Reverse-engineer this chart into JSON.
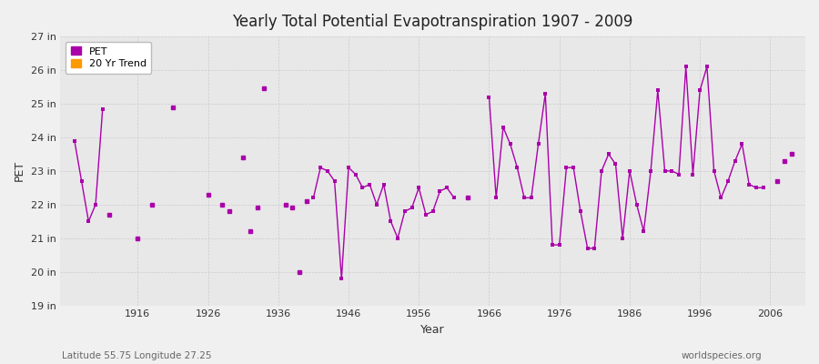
{
  "title": "Yearly Total Potential Evapotranspiration 1907 - 2009",
  "xlabel": "Year",
  "ylabel": "PET",
  "subtitle_left": "Latitude 55.75 Longitude 27.25",
  "watermark": "worldspecies.org",
  "line_color": "#AA00AA",
  "trend_color": "#FF9900",
  "bg_color": "#E8E8E8",
  "fig_bg_color": "#F0F0F0",
  "grid_color": "#CCCCCC",
  "ylim": [
    19,
    27
  ],
  "ytick_values": [
    19,
    20,
    21,
    22,
    23,
    24,
    25,
    26,
    27
  ],
  "ytick_labels": [
    "19 in",
    "20 in",
    "21 in",
    "22 in",
    "23 in",
    "24 in",
    "25 in",
    "26 in",
    "27 in"
  ],
  "xlim": [
    1905,
    2011
  ],
  "xticks": [
    1916,
    1926,
    1936,
    1946,
    1956,
    1966,
    1976,
    1986,
    1996,
    2006
  ],
  "year_values": {
    "1907": 23.9,
    "1908": 22.7,
    "1909": 21.5,
    "1910": 22.0,
    "1911": 24.85,
    "1912": 21.7,
    "1916": 21.0,
    "1918": 22.0,
    "1921": 24.9,
    "1926": 22.3,
    "1928": 22.0,
    "1929": 21.8,
    "1931": 23.4,
    "1932": 21.2,
    "1933": 21.9,
    "1934": 25.45,
    "1937": 22.0,
    "1938": 21.9,
    "1939": 20.0,
    "1940": 22.1,
    "1941": 22.2,
    "1942": 23.1,
    "1943": 23.0,
    "1944": 22.7,
    "1945": 19.8,
    "1946": 23.1,
    "1947": 22.9,
    "1948": 22.5,
    "1949": 22.6,
    "1950": 22.0,
    "1951": 22.6,
    "1952": 21.5,
    "1953": 21.0,
    "1954": 21.8,
    "1955": 21.9,
    "1956": 22.5,
    "1957": 21.7,
    "1958": 21.8,
    "1959": 22.4,
    "1960": 22.5,
    "1961": 22.2,
    "1963": 22.2,
    "1966": 25.2,
    "1967": 22.2,
    "1968": 24.3,
    "1969": 23.8,
    "1970": 23.1,
    "1971": 22.2,
    "1972": 22.2,
    "1973": 23.8,
    "1974": 25.3,
    "1975": 20.8,
    "1976": 20.8,
    "1977": 23.1,
    "1978": 23.1,
    "1979": 21.8,
    "1980": 20.7,
    "1981": 20.7,
    "1982": 23.0,
    "1983": 23.5,
    "1984": 23.2,
    "1985": 21.0,
    "1986": 23.0,
    "1987": 22.0,
    "1988": 21.2,
    "1989": 23.0,
    "1990": 25.4,
    "1991": 23.0,
    "1992": 23.0,
    "1993": 22.9,
    "1994": 26.1,
    "1995": 22.9,
    "1996": 25.4,
    "1997": 26.1,
    "1998": 23.0,
    "1999": 22.2,
    "2000": 22.7,
    "2001": 23.3,
    "2002": 23.8,
    "2003": 22.6,
    "2004": 22.5,
    "2005": 22.5,
    "2007": 22.7,
    "2008": 23.3,
    "2009": 23.5
  },
  "segments": [
    [
      1907,
      1908,
      1909,
      1910,
      1911
    ],
    [
      1941,
      1942,
      1943,
      1944,
      1945,
      1946,
      1947,
      1948,
      1949,
      1950,
      1951,
      1952,
      1953,
      1954,
      1955,
      1956,
      1957,
      1958,
      1959,
      1960,
      1961
    ],
    [
      1966,
      1967,
      1968,
      1969,
      1970,
      1971,
      1972,
      1973,
      1974,
      1975,
      1976,
      1977,
      1978,
      1979,
      1980,
      1981,
      1982,
      1983,
      1984,
      1985,
      1986,
      1987,
      1988,
      1989,
      1990,
      1991,
      1992,
      1993,
      1994,
      1995,
      1996,
      1997,
      1998,
      1999,
      2000,
      2001,
      2002,
      2003,
      2004,
      2005
    ]
  ],
  "isolated_years": [
    1912,
    1916,
    1918,
    1921,
    1926,
    1928,
    1929,
    1931,
    1932,
    1933,
    1934,
    1937,
    1938,
    1939,
    1940,
    1963,
    2007,
    2008,
    2009
  ]
}
